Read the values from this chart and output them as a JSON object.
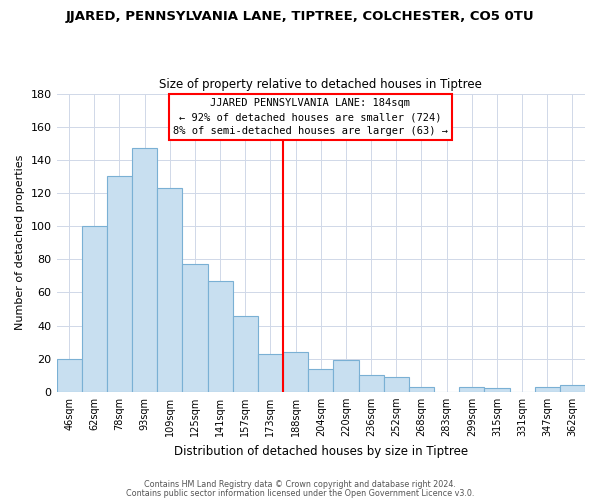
{
  "title": "JJARED, PENNSYLVANIA LANE, TIPTREE, COLCHESTER, CO5 0TU",
  "subtitle": "Size of property relative to detached houses in Tiptree",
  "xlabel": "Distribution of detached houses by size in Tiptree",
  "ylabel": "Number of detached properties",
  "bar_labels": [
    "46sqm",
    "62sqm",
    "78sqm",
    "93sqm",
    "109sqm",
    "125sqm",
    "141sqm",
    "157sqm",
    "173sqm",
    "188sqm",
    "204sqm",
    "220sqm",
    "236sqm",
    "252sqm",
    "268sqm",
    "283sqm",
    "299sqm",
    "315sqm",
    "331sqm",
    "347sqm",
    "362sqm"
  ],
  "bar_values": [
    20,
    100,
    130,
    147,
    123,
    77,
    67,
    46,
    23,
    24,
    14,
    19,
    10,
    9,
    3,
    0,
    3,
    2,
    0,
    3,
    4
  ],
  "bar_color": "#c8dff0",
  "bar_edge_color": "#7ab0d4",
  "vline_x": 9,
  "vline_color": "red",
  "annotation_title": "JJARED PENNSYLVANIA LANE: 184sqm",
  "annotation_line1": "← 92% of detached houses are smaller (724)",
  "annotation_line2": "8% of semi-detached houses are larger (63) →",
  "ylim": [
    0,
    180
  ],
  "yticks": [
    0,
    20,
    40,
    60,
    80,
    100,
    120,
    140,
    160,
    180
  ],
  "footer1": "Contains HM Land Registry data © Crown copyright and database right 2024.",
  "footer2": "Contains public sector information licensed under the Open Government Licence v3.0."
}
